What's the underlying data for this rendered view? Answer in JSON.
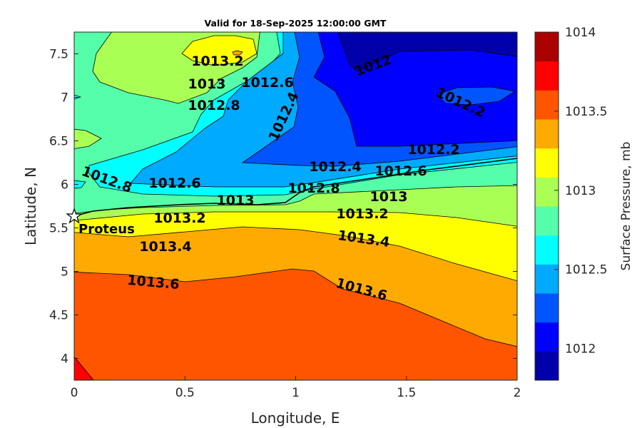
{
  "chart_data": {
    "type": "contour",
    "title": "Valid for 18-Sep-2025 12:00:00 GMT",
    "xlabel": "Longitude, E",
    "ylabel": "Latitude, N",
    "xlim": [
      0,
      2
    ],
    "ylim": [
      3.75,
      7.75
    ],
    "xticks": [
      "0",
      "0.5",
      "1",
      "1.5",
      "2"
    ],
    "yticks": [
      "4",
      "4.5",
      "5",
      "5.5",
      "6",
      "6.5",
      "7",
      "7.5"
    ],
    "colorbar": {
      "label": "Surface Pressure, mb",
      "range": [
        1011.8,
        1014.0
      ],
      "ticks": [
        "1012",
        "1012.5",
        "1013",
        "1013.5",
        "1014"
      ],
      "colors": [
        "#0000aa",
        "#0000ff",
        "#0055ff",
        "#00aaff",
        "#00ffff",
        "#55ffaa",
        "#aaff55",
        "#ffff00",
        "#ffaa00",
        "#ff5500",
        "#ff0000",
        "#aa0000"
      ]
    },
    "contour_levels": [
      1012,
      1012.2,
      1012.4,
      1012.6,
      1012.8,
      1013,
      1013.2,
      1013.4,
      1013.6,
      1013.8
    ],
    "contour_labels": [
      "1013.2",
      "1013",
      "1012.8",
      "1012.6",
      "1012.4",
      "1012",
      "1012.2",
      "1012.2",
      "1012.4",
      "1012.6",
      "1012.8",
      "1013",
      "1013.2",
      "1013.4",
      "1013.6",
      "1013.6",
      "1013.4",
      "1013.2",
      "1013",
      "1012.8",
      "1012.6"
    ],
    "marker": {
      "name": "Proteus",
      "lon": 0.0,
      "lat": 5.63,
      "symbol": "star"
    },
    "trend": "Pressure increases from ~1012 mb in the northeast to ~1013.8 mb in the southwest"
  }
}
